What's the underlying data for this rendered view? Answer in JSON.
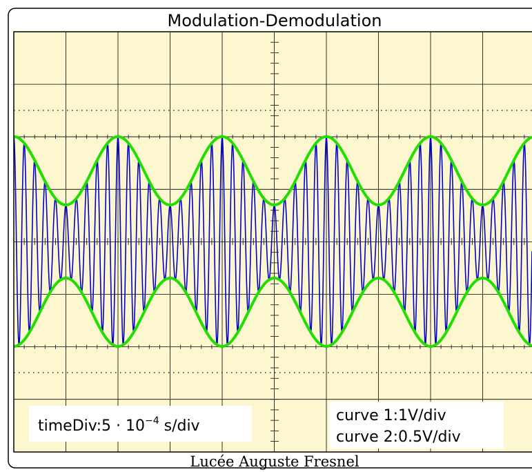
{
  "title": "Modulation-Demodulation",
  "footer": "Lucée Auguste Fresnel",
  "time_div": {
    "base": "timeDiv:5 · 10",
    "exponent": "−4",
    "unit": " s/div"
  },
  "curve_scales": [
    "curve 1:1V/div",
    "curve 2:0.5V/div"
  ]
}
